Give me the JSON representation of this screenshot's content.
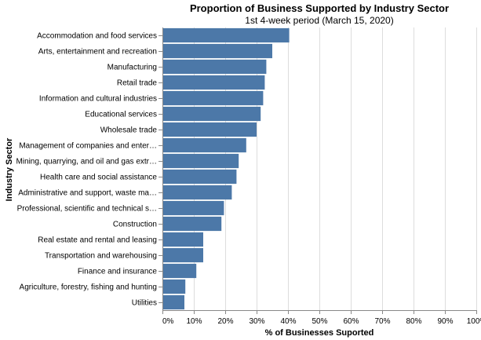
{
  "chart_data": {
    "type": "bar",
    "orientation": "horizontal",
    "title": "Proportion of Business Supported by Industry Sector",
    "subtitle": "1st 4-week period (March 15, 2020)",
    "xlabel": "% of Businesses Suported",
    "ylabel": "Industry Sector",
    "xlim": [
      0,
      1
    ],
    "x_ticks": [
      "0%",
      "10%",
      "20%",
      "30%",
      "40%",
      "50%",
      "60%",
      "70%",
      "80%",
      "90%",
      "100%"
    ],
    "grid": true,
    "bar_color": "#4c78a8",
    "categories": [
      "Accommodation and food services",
      "Arts, entertainment and recreation",
      "Manufacturing",
      "Retail trade",
      "Information and cultural industries",
      "Educational services",
      "Wholesale trade",
      "Management of companies and enter…",
      "Mining, quarrying, and oil and gas extr…",
      "Health care and social assistance",
      "Administrative and support, waste ma…",
      "Professional, scientific and technical s…",
      "Construction",
      "Real estate and rental and leasing",
      "Transportation and warehousing",
      "Finance and insurance",
      "Agriculture, forestry, fishing and hunting",
      "Utilities"
    ],
    "values": [
      0.404,
      0.35,
      0.331,
      0.326,
      0.321,
      0.313,
      0.3,
      0.267,
      0.243,
      0.236,
      0.221,
      0.196,
      0.188,
      0.13,
      0.13,
      0.108,
      0.073,
      0.07
    ]
  }
}
